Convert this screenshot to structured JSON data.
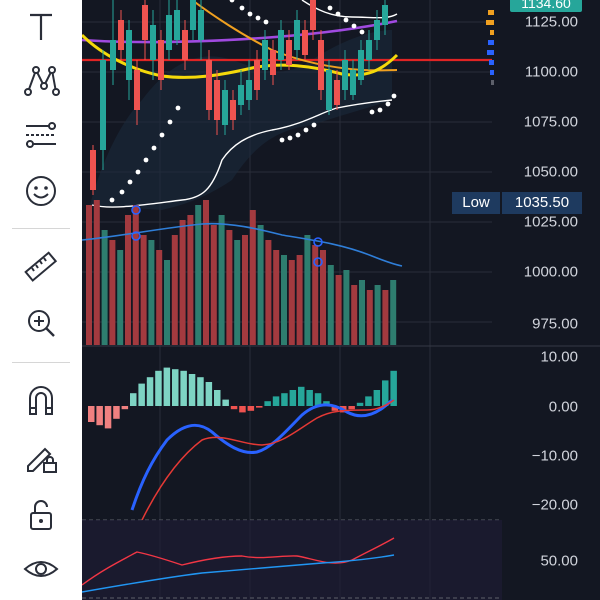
{
  "toolbar": {
    "items": [
      {
        "name": "text-tool-icon"
      },
      {
        "name": "pattern-tool-icon"
      },
      {
        "name": "fib-tool-icon"
      },
      {
        "name": "emoji-tool-icon"
      },
      {
        "name": "ruler-tool-icon"
      },
      {
        "name": "zoom-in-icon"
      },
      {
        "name": "magnet-icon"
      },
      {
        "name": "pencil-lock-icon"
      },
      {
        "name": "unlock-icon"
      },
      {
        "name": "eye-icon"
      }
    ]
  },
  "price_axis": {
    "labels": [
      "1125.00",
      "1100.00",
      "1075.00",
      "1050.00",
      "1025.00",
      "1000.00",
      "975.00"
    ],
    "current_price": "1134.60",
    "low_label": "Low",
    "low_value": "1035.50"
  },
  "macd_axis": {
    "labels": [
      "10.00",
      "0.00",
      "−10.00",
      "−20.00"
    ]
  },
  "rsi_axis": {
    "labels": [
      "50.00"
    ]
  },
  "colors": {
    "up": "#26a69a",
    "down": "#ef5350",
    "volume_up": "#2e7d6f",
    "volume_down": "#a33a3f",
    "ma_yellow": "#f5d90a",
    "ma_orange": "#f0a020",
    "ma_purple": "#a04ae0",
    "red_line": "#e02424",
    "macd_blue": "#2962ff",
    "signal_red": "#e53935",
    "rsi_red": "#f23645",
    "rsi_blue": "#2196f3"
  }
}
